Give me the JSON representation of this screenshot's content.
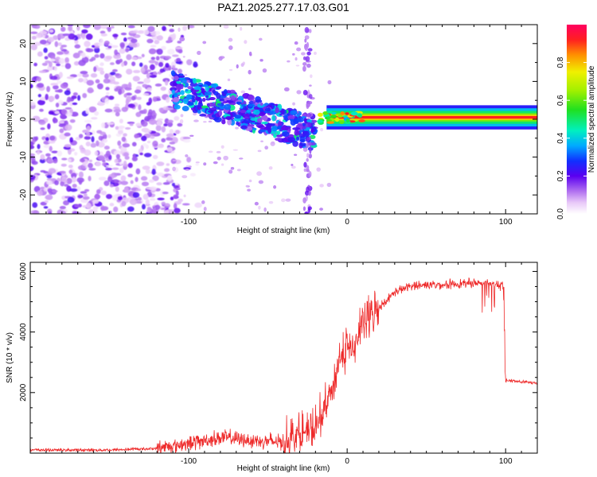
{
  "title": "PAZ1.2025.277.17.03.G01",
  "colors": {
    "axis": "#000000",
    "snr_line": "#ee2a2a"
  },
  "chart_data": [
    {
      "type": "heatmap",
      "name": "spectrogram",
      "xlabel": "Height of straight line (km)",
      "ylabel": "Frequency (Hz)",
      "xlim": [
        -200,
        120
      ],
      "ylim": [
        -25,
        25
      ],
      "xticks": [
        -100,
        0,
        100
      ],
      "yticks": [
        -20,
        -10,
        0,
        10,
        20
      ],
      "colorbar": {
        "label": "Normalized spectral amplitude",
        "range": [
          0,
          1
        ],
        "ticks": [
          "0.0",
          "0.2",
          "0.4",
          "0.6",
          "0.8"
        ],
        "tick_values": [
          0,
          0.2,
          0.4,
          0.6,
          0.8
        ]
      },
      "features": [
        {
          "x": [
            -200,
            -105
          ],
          "freq": [
            -25,
            25
          ],
          "amplitude": [
            0.02,
            0.15
          ],
          "description": "scattered noise"
        },
        {
          "x": [
            -110,
            -20
          ],
          "freq_start": 8,
          "freq_end": -4,
          "amplitude": [
            0.2,
            0.45
          ],
          "description": "descending track"
        },
        {
          "x": [
            -20,
            120
          ],
          "freq": [
            0,
            1
          ],
          "amplitude": [
            0.5,
            1.0
          ],
          "description": "main carrier line"
        }
      ]
    },
    {
      "type": "line",
      "name": "snr",
      "xlabel": "Height of straight line (km)",
      "ylabel": "SNR (10 * v/v)",
      "xlim": [
        -200,
        120
      ],
      "ylim": [
        0,
        6300
      ],
      "xticks": [
        -100,
        0,
        100
      ],
      "yticks": [
        2000,
        4000,
        6000
      ],
      "series": [
        {
          "name": "SNR",
          "x": [
            -200,
            -150,
            -120,
            -100,
            -80,
            -60,
            -40,
            -30,
            -20,
            -15,
            -10,
            -5,
            0,
            5,
            10,
            20,
            30,
            40,
            50,
            60,
            70,
            80,
            90,
            95,
            99,
            100,
            110,
            120
          ],
          "y": [
            100,
            100,
            150,
            300,
            500,
            400,
            350,
            600,
            700,
            1300,
            2000,
            3000,
            3400,
            3500,
            4200,
            4800,
            5300,
            5500,
            5550,
            5550,
            5580,
            5600,
            5620,
            5600,
            5500,
            2400,
            2350,
            2300
          ]
        }
      ]
    }
  ]
}
